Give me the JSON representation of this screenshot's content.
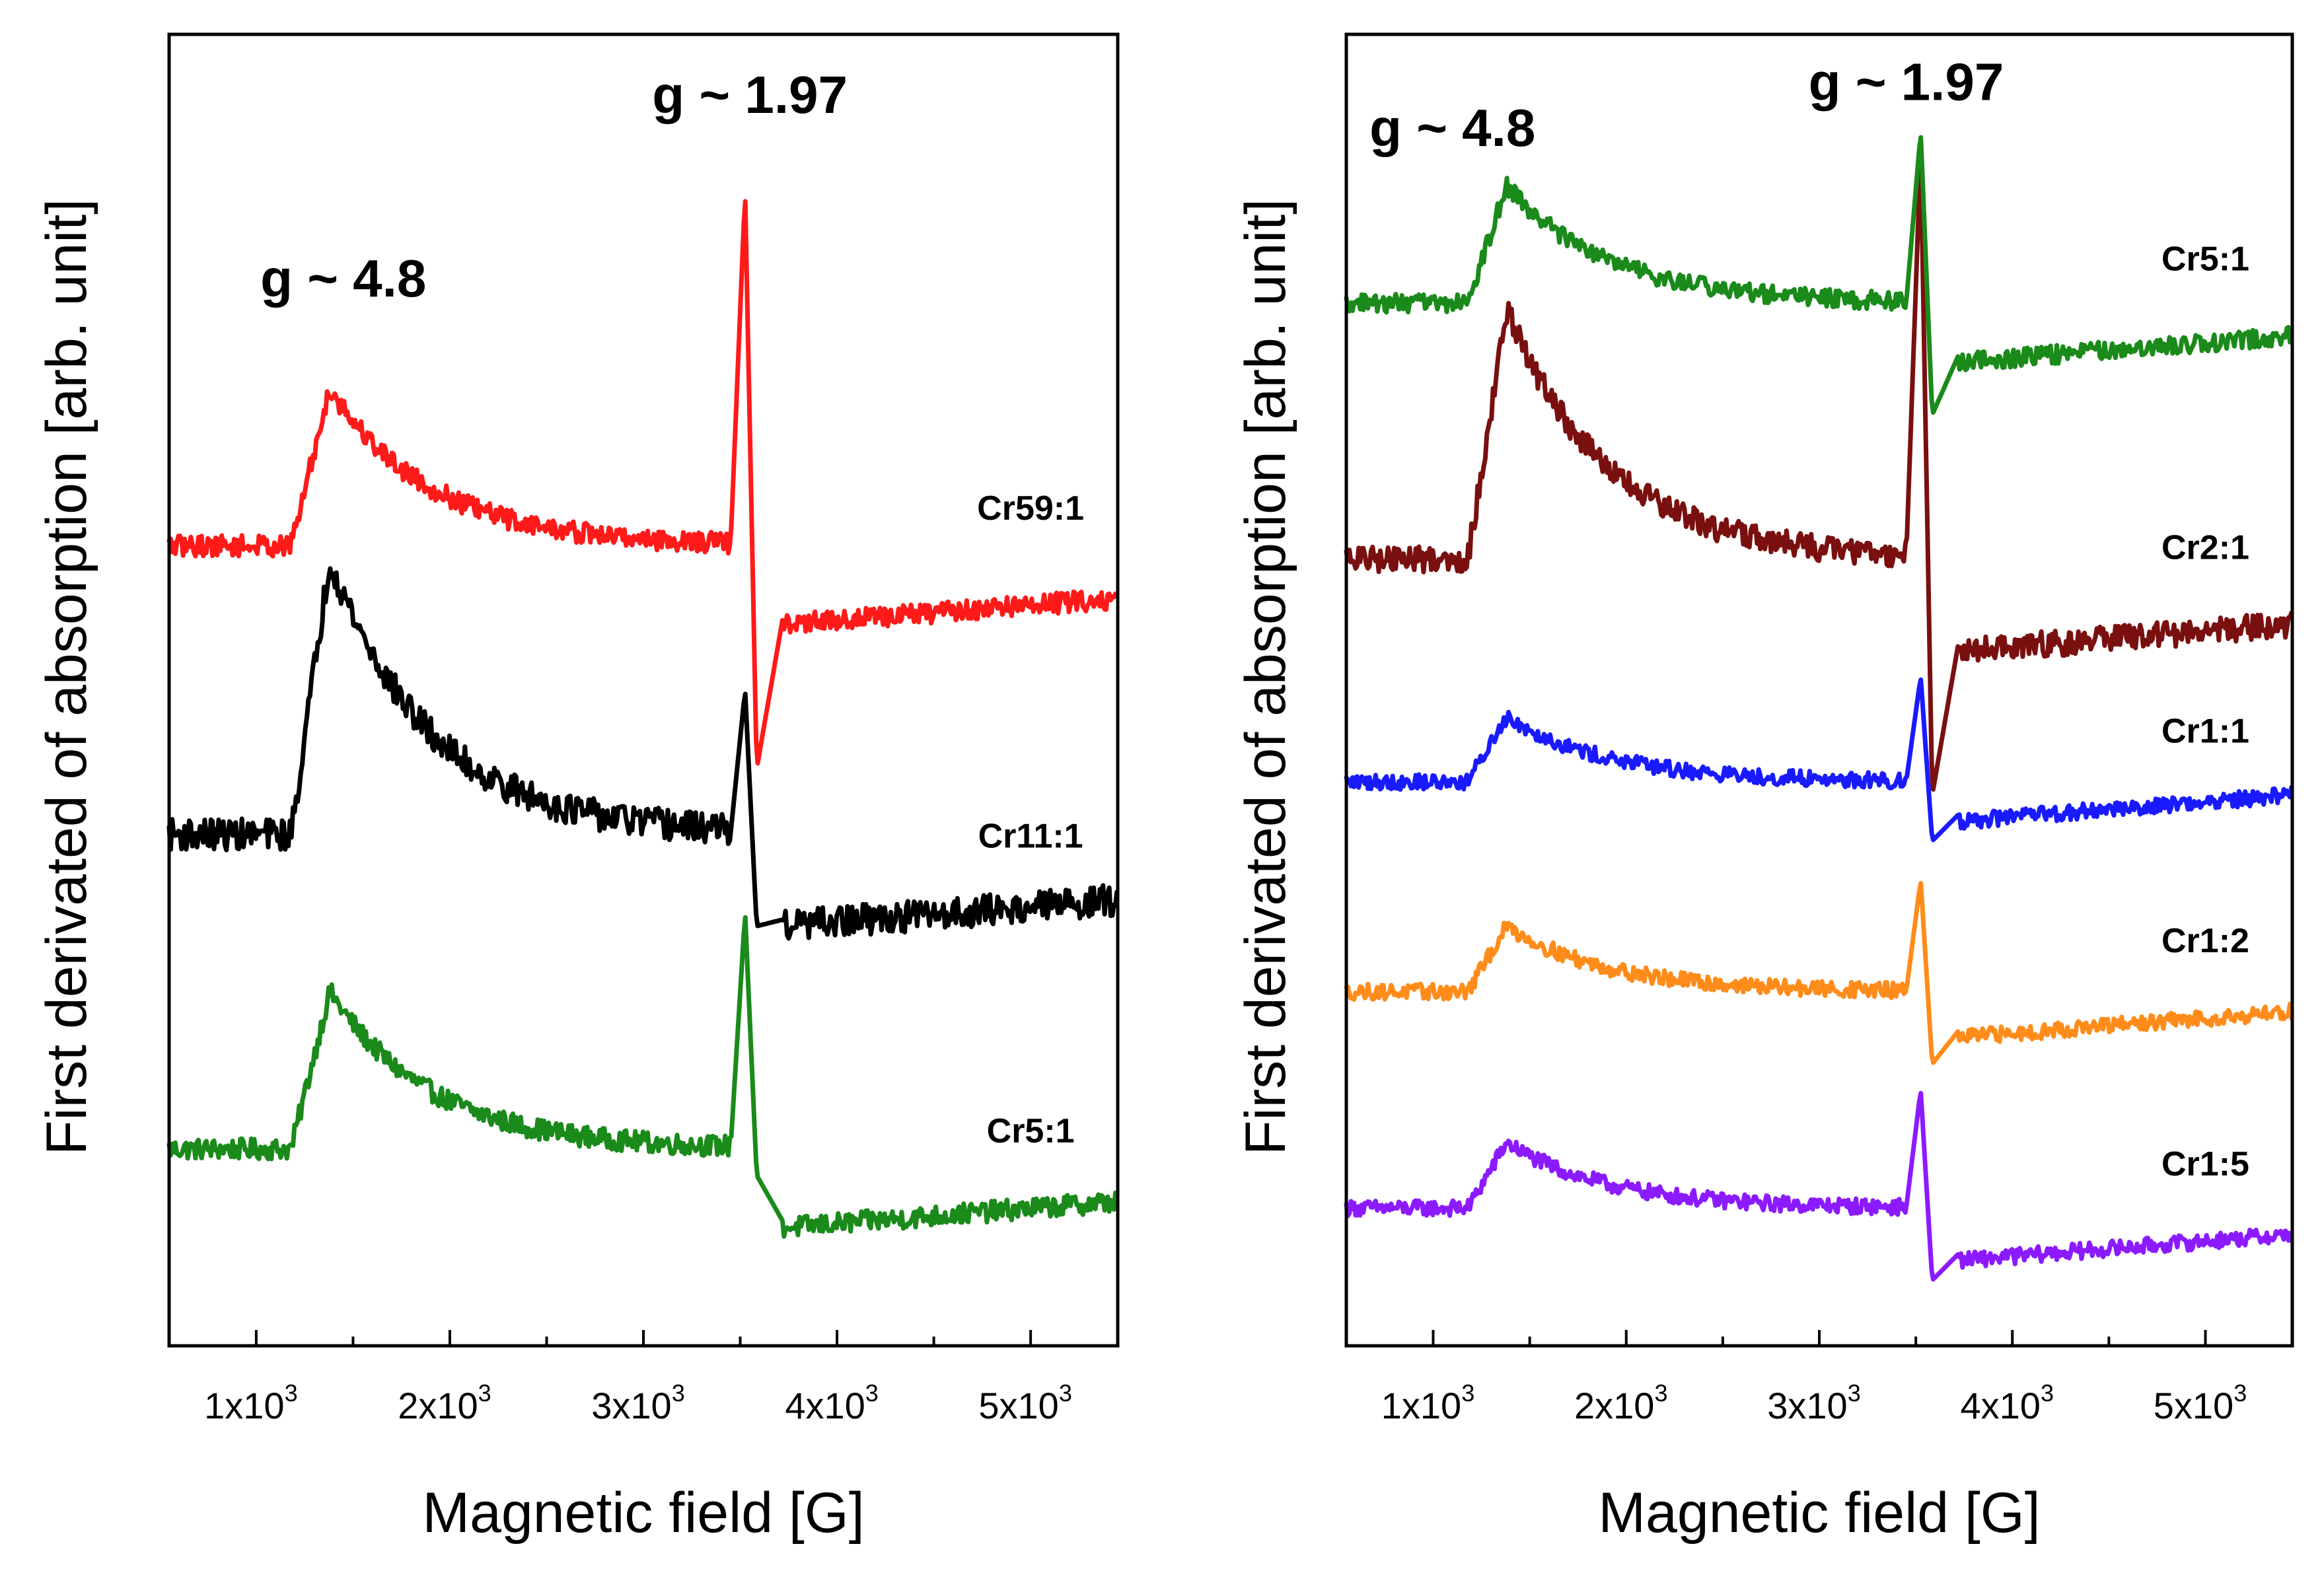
{
  "chart_data": [
    {
      "type": "line",
      "xlabel": "Magnetic field [G]",
      "ylabel": "First derivated of absorption [arb. unit]",
      "xlim": [
        550,
        5450
      ],
      "ylim": [
        0,
        100
      ],
      "xticks": [
        {
          "value": 1000,
          "mant": "1x10",
          "exp": "3"
        },
        {
          "value": 2000,
          "mant": "2x10",
          "exp": "3"
        },
        {
          "value": 3000,
          "mant": "3x10",
          "exp": "3"
        },
        {
          "value": 4000,
          "mant": "4x10",
          "exp": "3"
        },
        {
          "value": 5000,
          "mant": "5x10",
          "exp": "3"
        }
      ],
      "annotations": [
        {
          "text": "g ~ 4.8",
          "x": 1450,
          "y": 80
        },
        {
          "text": "g ~ 1.97",
          "x": 3550,
          "y": 94
        }
      ],
      "series": [
        {
          "name": "Cr5:1",
          "label": "Cr5:1",
          "color": "#1a8a1a",
          "baseline": 15,
          "right_level": 11,
          "broad_height": 12,
          "peak_up": 33,
          "peak_down": 13,
          "noise": 0.8,
          "label_x": 5000,
          "label_y": 15.5
        },
        {
          "name": "Cr11:1",
          "label": "Cr11:1",
          "color": "#000000",
          "baseline": 39,
          "right_level": 34,
          "broad_height": 21,
          "peak_up": 50,
          "peak_down": 32,
          "noise": 1.2,
          "label_x": 5000,
          "label_y": 38
        },
        {
          "name": "Cr59:1",
          "label": "Cr59:1",
          "color": "#ff1a1a",
          "baseline": 61,
          "right_level": 57,
          "broad_height": 12,
          "peak_up": 88,
          "peak_down": 44,
          "noise": 0.8,
          "label_x": 5000,
          "label_y": 63
        }
      ]
    },
    {
      "type": "line",
      "xlabel": "Magnetic field [G]",
      "ylabel": "First derivated of absorption [arb. unit]",
      "xlim": [
        550,
        5450
      ],
      "ylim": [
        0,
        100
      ],
      "xticks": [
        {
          "value": 1000,
          "mant": "1x10",
          "exp": "3"
        },
        {
          "value": 2000,
          "mant": "2x10",
          "exp": "3"
        },
        {
          "value": 3000,
          "mant": "3x10",
          "exp": "3"
        },
        {
          "value": 4000,
          "mant": "4x10",
          "exp": "3"
        },
        {
          "value": 5000,
          "mant": "5x10",
          "exp": "3"
        }
      ],
      "annotations": [
        {
          "text": "g ~ 4.8",
          "x": 1100,
          "y": 91.5
        },
        {
          "text": "g ~ 1.97",
          "x": 3450,
          "y": 95
        }
      ],
      "series": [
        {
          "name": "Cr1:5",
          "label": "Cr1:5",
          "color": "#8c1aff",
          "baseline": 10.5,
          "right_level": 8.5,
          "broad_height": 5,
          "peak_up": 19.5,
          "peak_down": 5,
          "noise": 0.6,
          "label_x": 5000,
          "label_y": 13
        },
        {
          "name": "Cr1:2",
          "label": "Cr1:2",
          "color": "#ff8c1a",
          "baseline": 27,
          "right_level": 25.5,
          "broad_height": 5,
          "peak_up": 35.5,
          "peak_down": 21.5,
          "noise": 0.6,
          "label_x": 5000,
          "label_y": 30
        },
        {
          "name": "Cr1:1",
          "label": "Cr1:1",
          "color": "#1a1aff",
          "baseline": 43,
          "right_level": 42,
          "broad_height": 5,
          "peak_up": 51,
          "peak_down": 38.5,
          "noise": 0.6,
          "label_x": 5000,
          "label_y": 46
        },
        {
          "name": "Cr2:1",
          "label": "Cr2:1",
          "color": "#7a0f0f",
          "baseline": 60,
          "right_level": 55,
          "broad_height": 19,
          "peak_up": 91,
          "peak_down": 42,
          "noise": 1.0,
          "label_x": 5000,
          "label_y": 60
        },
        {
          "name": "Cr5:1",
          "label": "Cr5:1",
          "color": "#1a8a1a",
          "baseline": 79.5,
          "right_level": 77,
          "broad_height": 9,
          "peak_up": 92.5,
          "peak_down": 71,
          "noise": 0.7,
          "label_x": 5000,
          "label_y": 82
        }
      ]
    }
  ]
}
